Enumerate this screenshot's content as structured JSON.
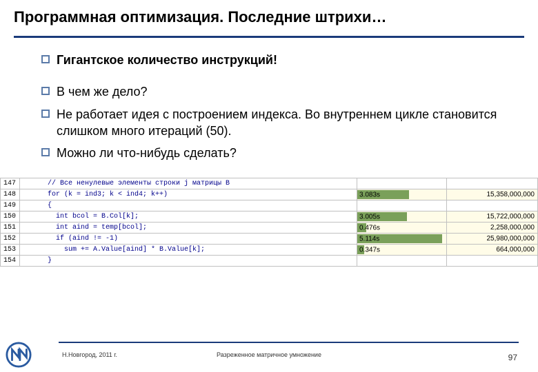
{
  "title": "Программная оптимизация. Последние штрихи…",
  "bullets": {
    "b0": "Гигантское количество инструкций!",
    "b1": "В чем же дело?",
    "b2": "Не работает идея с построением индекса. Во внутреннем цикле становится слишком много итераций (50).",
    "b3": "Можно ли что-нибудь сделать?"
  },
  "code": {
    "bar_color": "#7aa05a",
    "bg_color": "#fffce8",
    "rows": [
      {
        "ln": "147",
        "code": "      // Все ненулевые элементы строки j матрицы B",
        "time": "",
        "width": 0,
        "count": ""
      },
      {
        "ln": "148",
        "code": "      for (k = ind3; k < ind4; k++)",
        "time": "3.083s",
        "width": 58,
        "count": "15,358,000,000"
      },
      {
        "ln": "149",
        "code": "      {",
        "time": "",
        "width": 0,
        "count": ""
      },
      {
        "ln": "150",
        "code": "        int bcol = B.Col[k];",
        "time": "3.005s",
        "width": 56,
        "count": "15,722,000,000"
      },
      {
        "ln": "151",
        "code": "        int aind = temp[bcol];",
        "time": "0.476s",
        "width": 10,
        "count": "2,258,000,000"
      },
      {
        "ln": "152",
        "code": "        if (aind != -1)",
        "time": "5.114s",
        "width": 95,
        "count": "25,980,000,000"
      },
      {
        "ln": "153",
        "code": "          sum += A.Value[aind] * B.Value[k];",
        "time": "0.347s",
        "width": 8,
        "count": "664,000,000"
      },
      {
        "ln": "154",
        "code": "      }",
        "time": "",
        "width": 0,
        "count": ""
      }
    ]
  },
  "footer": {
    "left": "Н.Новгород, 2011 г.",
    "center": "Разреженное матричное умножение",
    "page": "97"
  },
  "colors": {
    "accent": "#1a3a7a",
    "bullet_border": "#5a7aa8"
  }
}
